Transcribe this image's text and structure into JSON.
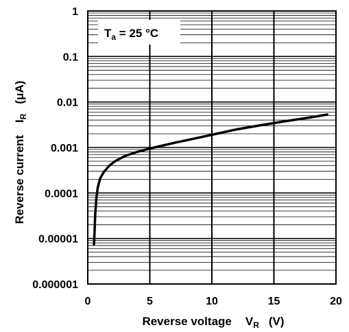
{
  "chart_data": {
    "type": "line",
    "title": "",
    "annotation": {
      "symbol": "T",
      "subscript": "a",
      "text": " = 25 °C"
    },
    "xlabel": {
      "text": "Reverse voltage",
      "symbol": "V",
      "subscript": "R",
      "unit": "(V)"
    },
    "ylabel": {
      "text": "Reverse current",
      "symbol": "I",
      "subscript": "R",
      "unit": "(μA)"
    },
    "xlim": [
      0,
      20
    ],
    "ylim": [
      1e-06,
      1
    ],
    "yscale": "log",
    "grid": true,
    "x_ticks": [
      "0",
      "5",
      "10",
      "15",
      "20"
    ],
    "y_ticks": [
      "1",
      "0.1",
      "0.01",
      "0.001",
      "0.0001",
      "0.00001",
      "0.000001"
    ],
    "series": [
      {
        "x": [
          0.5,
          0.55,
          0.6,
          0.7,
          0.8,
          1.0,
          1.3,
          1.7,
          2.2,
          3.0,
          4.0,
          5.0,
          6.0,
          7.0,
          8.0,
          10.0,
          12.0,
          14.0,
          16.0,
          18.0,
          19.3
        ],
        "y": [
          7.5e-06,
          1.5e-05,
          3.5e-05,
          8e-05,
          0.00013,
          0.00021,
          0.00029,
          0.00039,
          0.0005,
          0.00065,
          0.0008,
          0.00095,
          0.0011,
          0.00127,
          0.00145,
          0.0019,
          0.0025,
          0.0031,
          0.0038,
          0.0046,
          0.0053
        ],
        "color": "#000000"
      }
    ]
  }
}
